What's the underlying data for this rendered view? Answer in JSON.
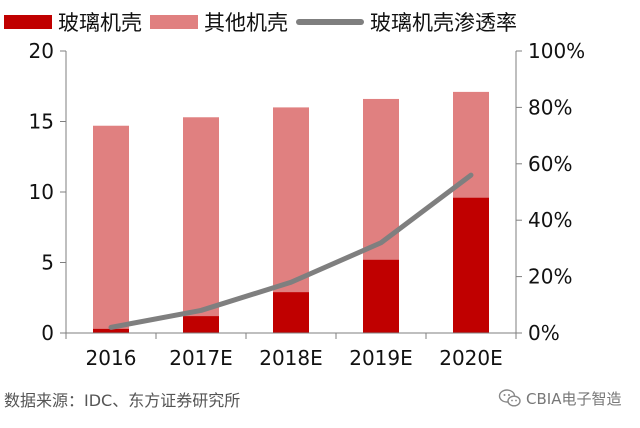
{
  "legend": {
    "glass": "玻璃机壳",
    "other": "其他机壳",
    "rate": "玻璃机壳渗透率"
  },
  "source_note": "数据来源：IDC、东方证券研究所",
  "watermark": {
    "text": "CBIA电子智造",
    "icon": "wechat-icon"
  },
  "colors": {
    "glass": "#c00000",
    "other": "#e08080",
    "rate": "#7f7f7f",
    "axis": "#7f7f7f"
  },
  "chart_data": {
    "type": "bar",
    "stacked": true,
    "categories": [
      "2016",
      "2017E",
      "2018E",
      "2019E",
      "2020E"
    ],
    "series": [
      {
        "name": "玻璃机壳",
        "type": "bar",
        "axis": "left",
        "values": [
          0.3,
          1.2,
          2.9,
          5.2,
          9.6
        ]
      },
      {
        "name": "其他机壳",
        "type": "bar",
        "axis": "left",
        "values": [
          14.4,
          14.1,
          13.1,
          11.4,
          7.5
        ]
      },
      {
        "name": "玻璃机壳渗透率",
        "type": "line",
        "axis": "right",
        "values": [
          0.02,
          0.08,
          0.18,
          0.32,
          0.56
        ]
      }
    ],
    "ylim_left": [
      0,
      20
    ],
    "yticks_left": [
      "0",
      "5",
      "10",
      "15",
      "20"
    ],
    "ylim_right": [
      0,
      1
    ],
    "yticks_right": [
      "0%",
      "20%",
      "40%",
      "60%",
      "80%",
      "100%"
    ],
    "grid": false,
    "legend_position": "top"
  }
}
